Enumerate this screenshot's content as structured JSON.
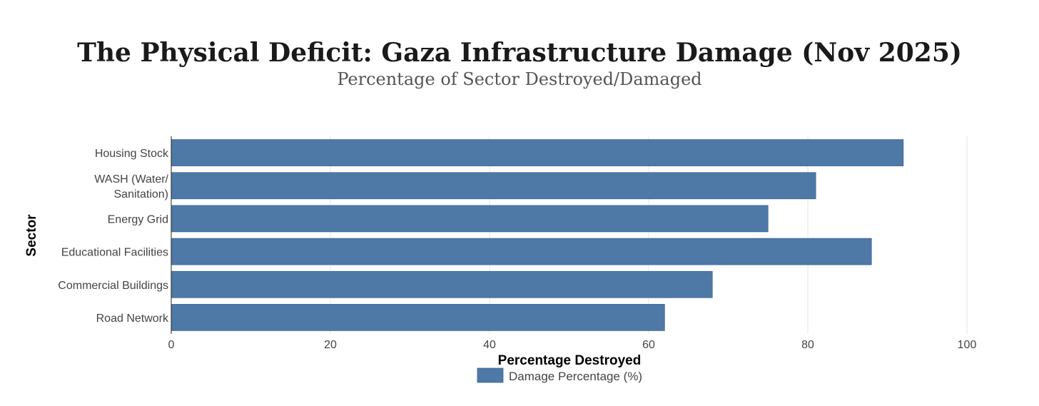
{
  "chart_data": {
    "type": "bar",
    "orientation": "horizontal",
    "title": "The Physical Deficit: Gaza Infrastructure Damage (Nov 2025)",
    "subtitle": "Percentage of Sector Destroyed/Damaged",
    "xlabel": "Percentage Destroyed",
    "ylabel": "Sector",
    "xlim": [
      0,
      100
    ],
    "xticks": [
      0,
      20,
      40,
      60,
      80,
      100
    ],
    "grid": true,
    "legend_position": "bottom-center",
    "categories": [
      [
        "Housing Stock"
      ],
      [
        "WASH (Water/",
        "Sanitation)"
      ],
      [
        "Energy Grid"
      ],
      [
        "Educational Facilities"
      ],
      [
        "Commercial Buildings"
      ],
      [
        "Road Network"
      ]
    ],
    "series": [
      {
        "name": "Damage Percentage (%)",
        "color": "#4e79a7",
        "values": [
          92,
          81,
          75,
          88,
          68,
          62
        ]
      }
    ]
  }
}
